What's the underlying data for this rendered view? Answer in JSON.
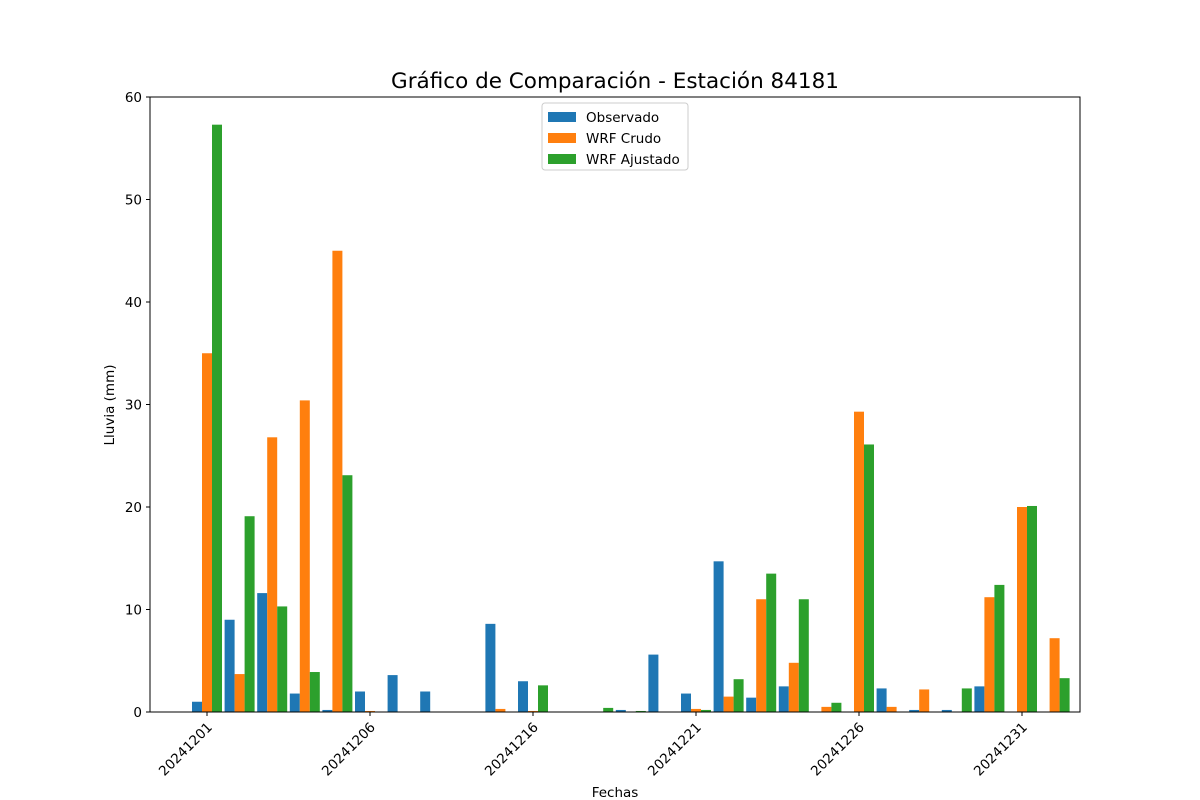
{
  "chart_data": {
    "type": "bar",
    "title": "Gráfico de Comparación - Estación 84181",
    "xlabel": "Fechas",
    "ylabel": "Lluvia (mm)",
    "ylim": [
      0,
      60
    ],
    "yticks": [
      0,
      10,
      20,
      30,
      40,
      50,
      60
    ],
    "xtick_labels": [
      "20241201",
      "20241206",
      "20241216",
      "20241221",
      "20241226",
      "20241231"
    ],
    "xtick_category_index": [
      0,
      5,
      10,
      15,
      20,
      25
    ],
    "grid": false,
    "legend_position": "top-center",
    "categories": [
      "1",
      "2",
      "3",
      "4",
      "5",
      "6",
      "7",
      "8",
      "9",
      "10",
      "11",
      "12",
      "13",
      "14",
      "15",
      "16",
      "17",
      "18",
      "19",
      "20",
      "21",
      "22",
      "23",
      "24",
      "25",
      "26"
    ],
    "series": [
      {
        "name": "Observado",
        "color": "#1f77b4",
        "values": [
          1.0,
          9.0,
          11.6,
          1.8,
          0.2,
          2.0,
          3.6,
          2.0,
          0,
          8.6,
          3.0,
          0,
          0,
          0.2,
          5.6,
          1.8,
          14.7,
          1.4,
          2.5,
          0,
          0,
          2.3,
          0.2,
          0.2,
          2.5,
          0
        ]
      },
      {
        "name": "WRF Crudo",
        "color": "#ff7f0e",
        "values": [
          35.0,
          3.7,
          26.8,
          30.4,
          45.0,
          0.1,
          0,
          0,
          0,
          0.3,
          0.1,
          0,
          0,
          0,
          0,
          0.3,
          1.5,
          11.0,
          4.8,
          0.5,
          29.3,
          0.5,
          2.2,
          0,
          11.2,
          20.0
        ]
      },
      {
        "name": "WRF Ajustado",
        "color": "#2ca02c",
        "values": [
          57.3,
          19.1,
          10.3,
          3.9,
          23.1,
          0,
          0,
          0,
          0,
          0,
          2.6,
          0,
          0.4,
          0.1,
          0,
          0.2,
          3.2,
          13.5,
          11.0,
          0.9,
          26.1,
          0,
          0,
          2.3,
          12.4,
          20.1
        ]
      }
    ],
    "extra_bar": {
      "category_index": 26,
      "series_index": 1,
      "value": 7.2,
      "series_index_b": 2,
      "value_b": 3.3
    }
  }
}
